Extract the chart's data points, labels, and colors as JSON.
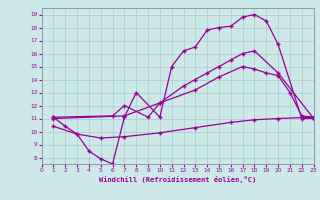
{
  "xlabel": "Windchill (Refroidissement éolien,°C)",
  "bg_color": "#cce8e8",
  "line_color": "#990099",
  "grid_color": "#aacccc",
  "xlim": [
    0,
    23
  ],
  "ylim": [
    7.5,
    19.5
  ],
  "yticks": [
    8,
    9,
    10,
    11,
    12,
    13,
    14,
    15,
    16,
    17,
    18,
    19
  ],
  "xticks": [
    0,
    1,
    2,
    3,
    4,
    5,
    6,
    7,
    8,
    9,
    10,
    11,
    12,
    13,
    14,
    15,
    16,
    17,
    18,
    19,
    20,
    21,
    22,
    23
  ],
  "line1_x": [
    1,
    2,
    3,
    4,
    5,
    6,
    7,
    8,
    10,
    11,
    12,
    13,
    14,
    15,
    16,
    17,
    18,
    19,
    20,
    22,
    23
  ],
  "line1_y": [
    11.1,
    10.4,
    9.8,
    8.5,
    7.9,
    7.5,
    11.1,
    13.0,
    11.1,
    15.0,
    16.2,
    16.5,
    17.8,
    18.0,
    18.1,
    18.8,
    19.0,
    18.5,
    16.7,
    11.0,
    11.0
  ],
  "line2_x": [
    1,
    6,
    7,
    9,
    10,
    12,
    13,
    14,
    15,
    16,
    17,
    18,
    20,
    23
  ],
  "line2_y": [
    11.1,
    11.2,
    12.0,
    11.1,
    12.2,
    13.5,
    14.0,
    14.5,
    15.0,
    15.5,
    16.0,
    16.2,
    14.5,
    11.0
  ],
  "line3_x": [
    1,
    7,
    10,
    13,
    15,
    17,
    18,
    19,
    20,
    21,
    22,
    23
  ],
  "line3_y": [
    11.0,
    11.2,
    12.2,
    13.2,
    14.2,
    15.0,
    14.8,
    14.5,
    14.3,
    13.0,
    11.2,
    11.1
  ],
  "line4_x": [
    1,
    3,
    5,
    7,
    10,
    13,
    16,
    18,
    20,
    23
  ],
  "line4_y": [
    10.4,
    9.8,
    9.5,
    9.6,
    9.9,
    10.3,
    10.7,
    10.9,
    11.0,
    11.1
  ]
}
